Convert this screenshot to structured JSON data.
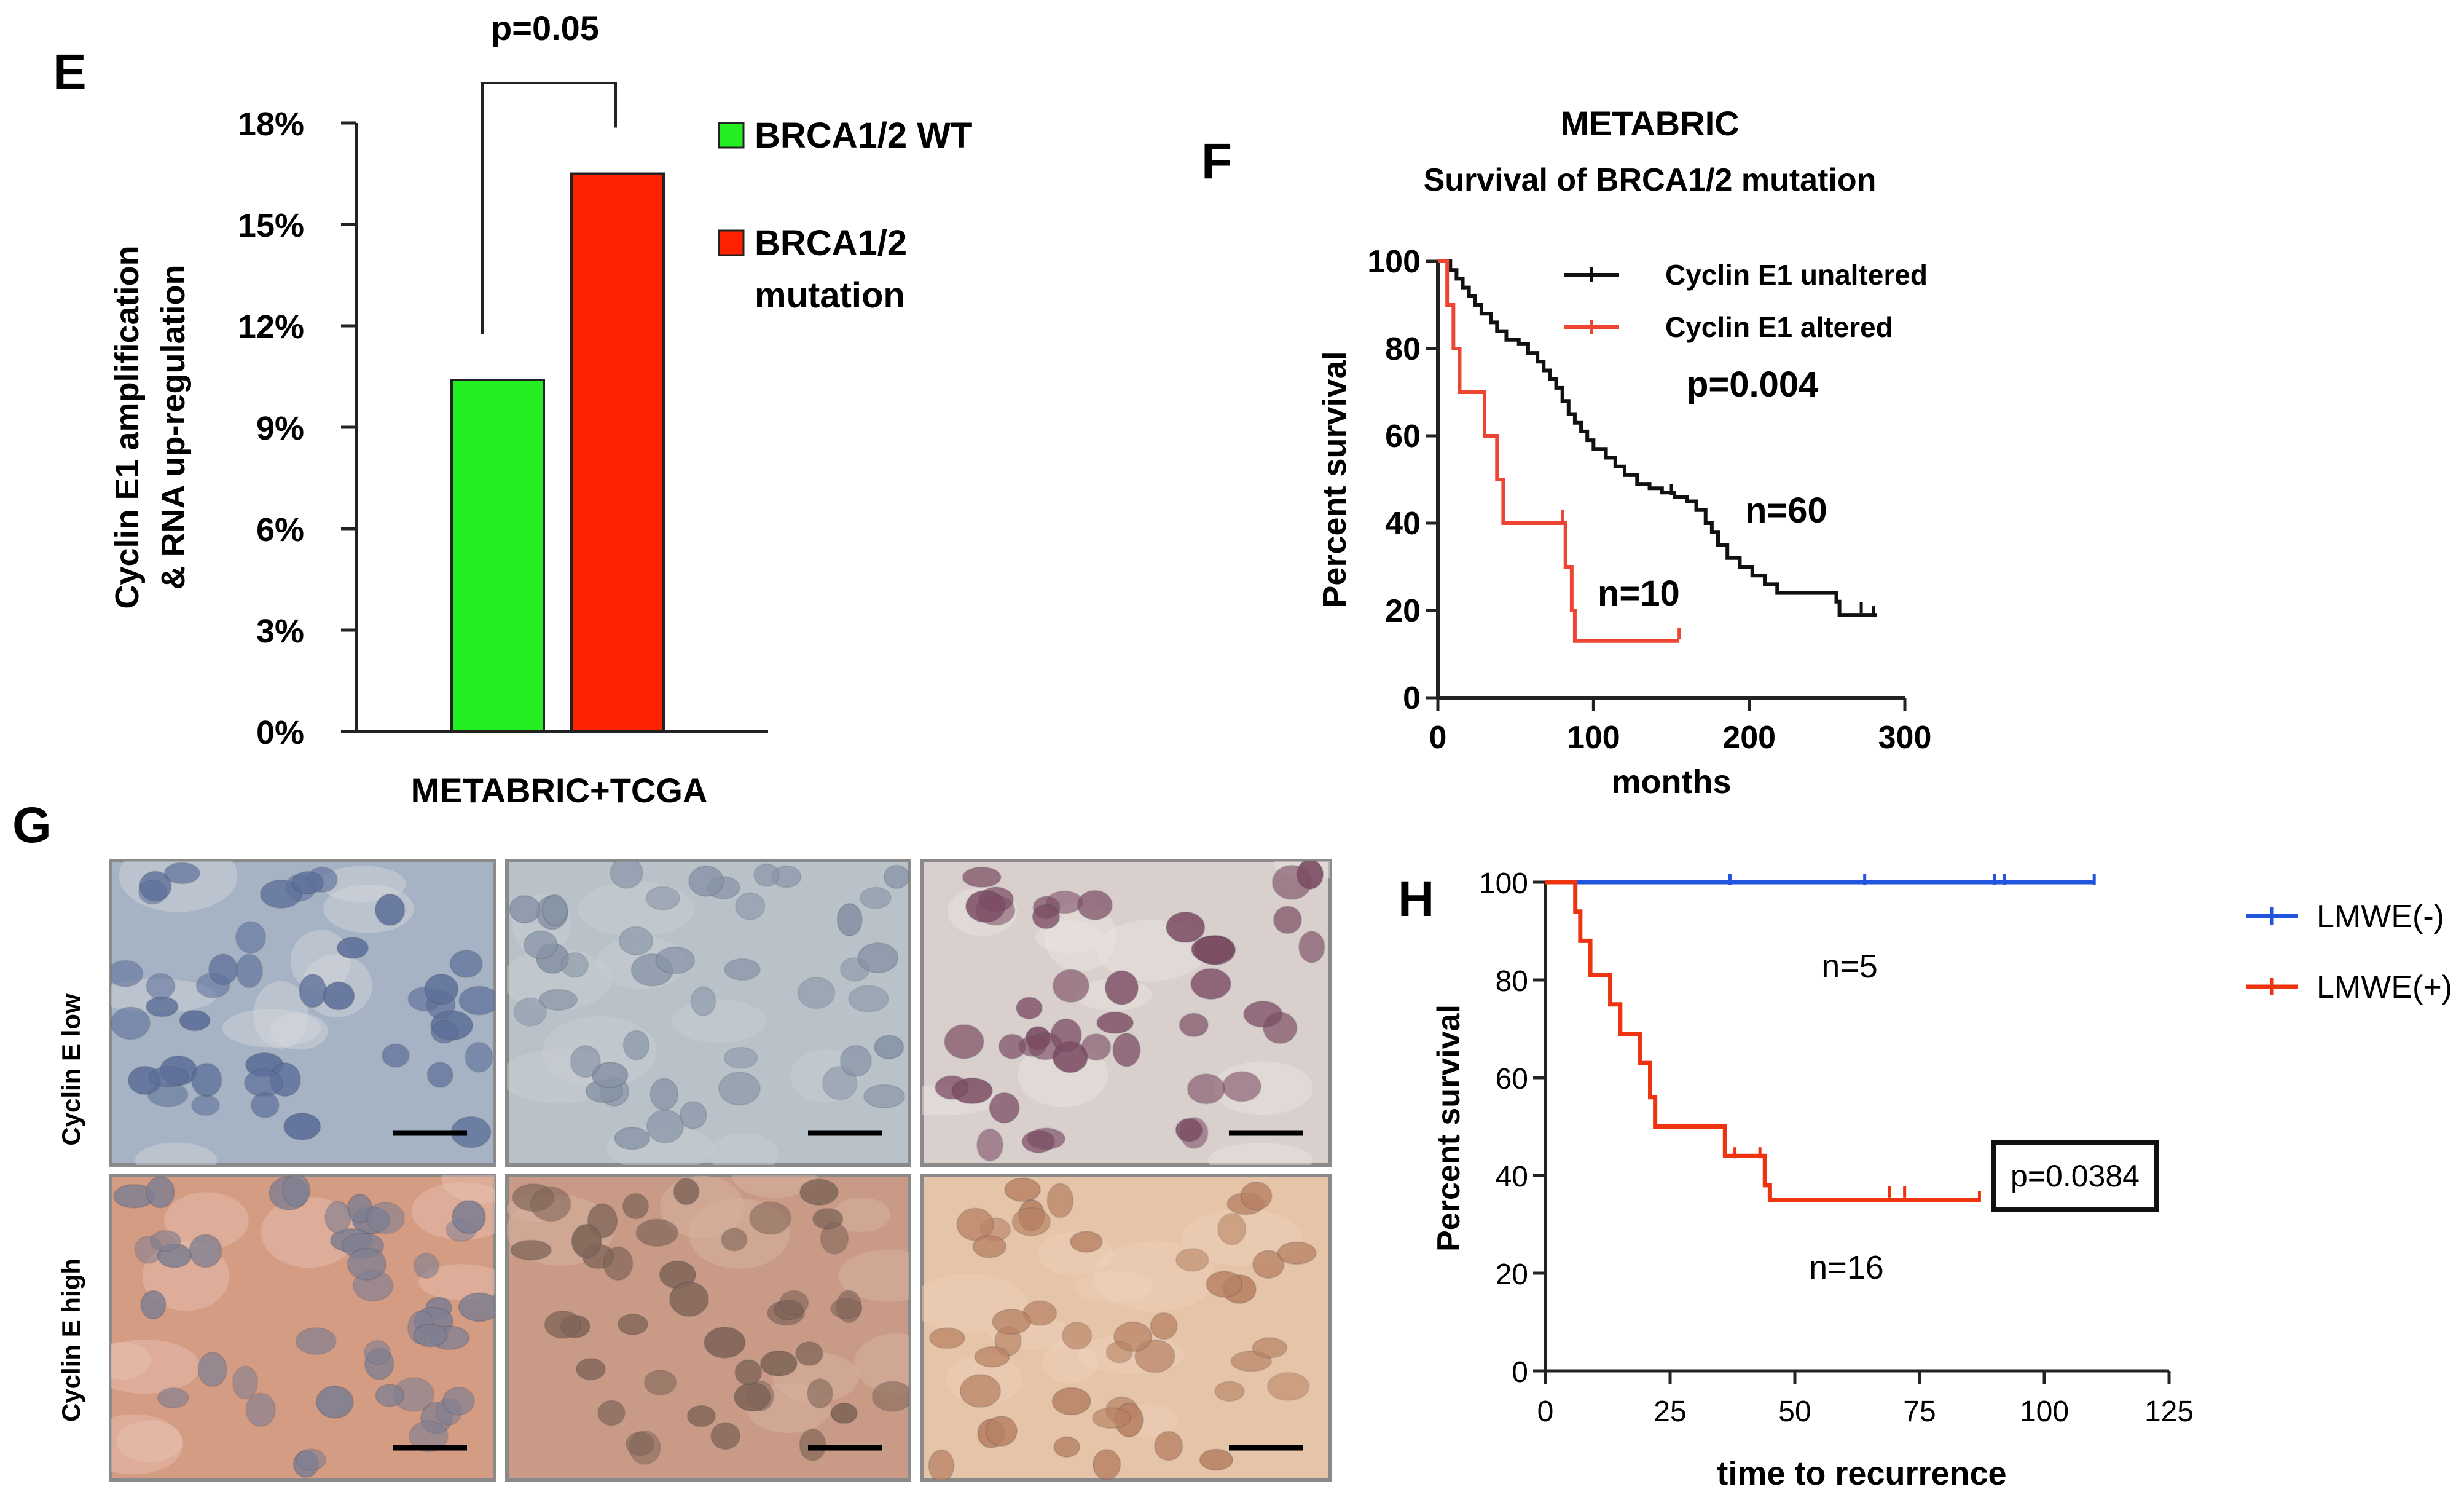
{
  "panels": {
    "E": "E",
    "F": "F",
    "G": "G",
    "H": "H"
  },
  "chart_data": [
    {
      "panel": "E",
      "type": "bar",
      "categories": [
        "BRCA1/2 WT",
        "BRCA1/2 mutation"
      ],
      "values": [
        10.4,
        16.5
      ],
      "colors": [
        "#22ee22",
        "#ff2200"
      ],
      "yticks": [
        "0%",
        "3%",
        "6%",
        "9%",
        "12%",
        "15%",
        "18%"
      ],
      "ylim": [
        0,
        18
      ],
      "ylabel_line1": "Cyclin E1 amplification",
      "ylabel_line2": "& RNA up-regulation",
      "xlabel": "METABRIC+TCGA",
      "annotation": "p=0.05",
      "legend": [
        {
          "lines": [
            "BRCA1/2 WT"
          ],
          "color": "#22ee22"
        },
        {
          "lines": [
            "BRCA1/2",
            "mutation"
          ],
          "color": "#ff2200"
        }
      ]
    },
    {
      "panel": "F",
      "type": "line",
      "title": "METABRIC",
      "subtitle": "Survival of BRCA1/2 mutation",
      "xlabel": "months",
      "ylabel": "Percent survival",
      "xlim": [
        0,
        300
      ],
      "ylim": [
        0,
        100
      ],
      "xticks": [
        "0",
        "100",
        "200",
        "300"
      ],
      "yticks": [
        "0",
        "20",
        "40",
        "60",
        "80",
        "100"
      ],
      "pvalue": "p=0.004",
      "series": [
        {
          "name": "Cyclin E1 unaltered",
          "color": "#111111",
          "n_label": "n=60",
          "steps": [
            [
              0,
              100
            ],
            [
              8,
              98
            ],
            [
              12,
              96
            ],
            [
              16,
              94
            ],
            [
              20,
              92
            ],
            [
              24,
              90
            ],
            [
              28,
              88
            ],
            [
              34,
              86
            ],
            [
              38,
              84
            ],
            [
              44,
              82
            ],
            [
              52,
              81
            ],
            [
              58,
              79
            ],
            [
              64,
              77
            ],
            [
              68,
              75
            ],
            [
              72,
              73
            ],
            [
              76,
              71
            ],
            [
              80,
              68
            ],
            [
              84,
              65
            ],
            [
              88,
              63
            ],
            [
              92,
              61
            ],
            [
              96,
              59
            ],
            [
              100,
              57
            ],
            [
              108,
              55
            ],
            [
              114,
              53
            ],
            [
              120,
              51
            ],
            [
              128,
              49
            ],
            [
              136,
              48
            ],
            [
              144,
              47
            ],
            [
              152,
              46
            ],
            [
              160,
              45
            ],
            [
              166,
              43
            ],
            [
              172,
              40
            ],
            [
              176,
              38
            ],
            [
              180,
              35
            ],
            [
              186,
              32
            ],
            [
              194,
              30
            ],
            [
              202,
              28
            ],
            [
              210,
              26
            ],
            [
              218,
              24
            ],
            [
              256,
              22
            ],
            [
              258,
              19
            ],
            [
              282,
              19
            ]
          ],
          "censor": [
            [
              150,
              47
            ],
            [
              272,
              20
            ],
            [
              280,
              19
            ]
          ]
        },
        {
          "name": "Cyclin E1 altered",
          "color": "#ee4433",
          "n_label": "n=10",
          "steps": [
            [
              0,
              100
            ],
            [
              6,
              90
            ],
            [
              10,
              80
            ],
            [
              14,
              70
            ],
            [
              30,
              60
            ],
            [
              38,
              50
            ],
            [
              42,
              40
            ],
            [
              82,
              30
            ],
            [
              86,
              20
            ],
            [
              88,
              13
            ],
            [
              155,
              13
            ]
          ],
          "censor": [
            [
              80,
              41
            ],
            [
              155,
              14
            ]
          ]
        }
      ]
    },
    {
      "panel": "H",
      "type": "line",
      "xlabel": "time to recurrence",
      "ylabel": "Percent survival",
      "xlim": [
        0,
        125
      ],
      "ylim": [
        0,
        100
      ],
      "xticks": [
        "0",
        "25",
        "50",
        "75",
        "100",
        "125"
      ],
      "yticks": [
        "0",
        "20",
        "40",
        "60",
        "80",
        "100"
      ],
      "pvalue": "p=0.0384",
      "series": [
        {
          "name": "LMWE(-)",
          "color": "#2255dd",
          "n_label": "n=5",
          "steps": [
            [
              0,
              100
            ],
            [
              110,
              100
            ]
          ],
          "censor": [
            [
              37,
              100
            ],
            [
              64,
              100
            ],
            [
              90,
              100
            ],
            [
              92,
              100
            ],
            [
              110,
              100
            ]
          ]
        },
        {
          "name": "LMWE(+)",
          "color": "#ee3311",
          "n_label": "n=16",
          "steps": [
            [
              0,
              100
            ],
            [
              6,
              94
            ],
            [
              7,
              88
            ],
            [
              9,
              81
            ],
            [
              13,
              75
            ],
            [
              15,
              69
            ],
            [
              19,
              63
            ],
            [
              21,
              56
            ],
            [
              22,
              50
            ],
            [
              36,
              44
            ],
            [
              44,
              38
            ],
            [
              45,
              35
            ],
            [
              87,
              35
            ]
          ],
          "censor": [
            [
              38,
              44
            ],
            [
              43,
              44
            ],
            [
              69,
              36
            ],
            [
              72,
              36
            ],
            [
              87,
              35
            ]
          ]
        }
      ]
    }
  ],
  "panel_g": {
    "row_labels": [
      "Cyclin E low",
      "Cyclin E high"
    ],
    "tiles": [
      {
        "bg": "#a5b3c5",
        "cell": "#5d6f9a",
        "stroma": "#d8d8dc"
      },
      {
        "bg": "#b9c2c9",
        "cell": "#8794a7",
        "stroma": "#c9cfd3"
      },
      {
        "bg": "#d9cfcc",
        "cell": "#7c4c63",
        "stroma": "#ebe4e0"
      },
      {
        "bg": "#d59c84",
        "cell": "#7f7f92",
        "stroma": "#e8c4b4"
      },
      {
        "bg": "#c99b86",
        "cell": "#806558",
        "stroma": "#d7b5a3"
      },
      {
        "bg": "#e6c4a8",
        "cell": "#b88263",
        "stroma": "#edd3bd"
      }
    ]
  }
}
